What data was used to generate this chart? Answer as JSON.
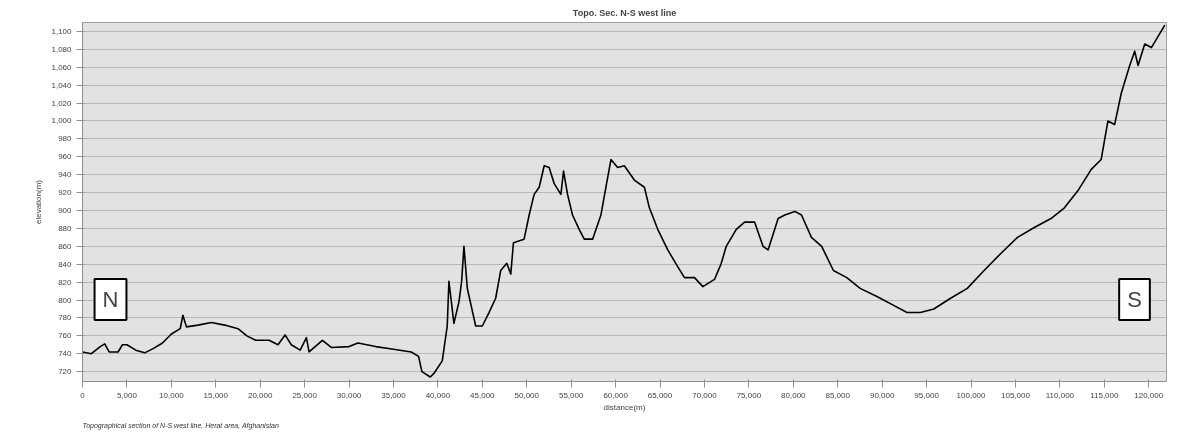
{
  "chart_data": {
    "type": "line",
    "title": "Topo. Sec. N-S west line",
    "xlabel": "distance(m)",
    "ylabel": "elevation(m)",
    "annotations": [
      "N",
      "S",
      "Topographical section of N-S west line, Herat area, Afghanistan"
    ],
    "x": [
      0,
      1000,
      2000,
      2500,
      3000,
      4000,
      4500,
      5000,
      6000,
      7000,
      8000,
      9000,
      10000,
      11000,
      11300,
      11700,
      13000,
      14500,
      16000,
      17500,
      18500,
      19500,
      21000,
      22000,
      22800,
      23500,
      24500,
      25200,
      25500,
      27000,
      28000,
      30000,
      31000,
      33000,
      35000,
      37000,
      37820,
      38200,
      39140,
      39550,
      40490,
      41050,
      41240,
      41800,
      42370,
      42670,
      42930,
      43310,
      44250,
      45000,
      45750,
      46500,
      47070,
      47750,
      48200,
      48500,
      49700,
      50270,
      50830,
      51400,
      51960,
      52520,
      53090,
      53840,
      54140,
      54590,
      55150,
      55900,
      56470,
      57410,
      58350,
      58910,
      59480,
      60230,
      60980,
      62110,
      63240,
      63800,
      64740,
      65870,
      67000,
      67750,
      68880,
      69820,
      71130,
      71890,
      72450,
      73580,
      74520,
      75650,
      76590,
      77160,
      78290,
      79040,
      80170,
      80920,
      82040,
      83190,
      84510,
      86020,
      87520,
      89410,
      91290,
      92800,
      94300,
      95810,
      97700,
      99580,
      101470,
      103350,
      105230,
      107120,
      109000,
      110510,
      112020,
      113530,
      114650,
      115410,
      116160,
      116910,
      117860,
      118420,
      118800,
      119550,
      120300,
      121810
    ],
    "series": [
      {
        "color": "#000000",
        "values": [
          742,
          740,
          748,
          751,
          742,
          742,
          750,
          750,
          744,
          741,
          746,
          752,
          762,
          768,
          783,
          770,
          772,
          775,
          772,
          768,
          760,
          755,
          755,
          750,
          761,
          750,
          744,
          758,
          742,
          755,
          747,
          748,
          752,
          748,
          745,
          742,
          737,
          720,
          714,
          718,
          732,
          771,
          821,
          774,
          798,
          821,
          860,
          813,
          771,
          771,
          786,
          802,
          833,
          841,
          829,
          864,
          868,
          895,
          918,
          926,
          950,
          948,
          930,
          918,
          944,
          918,
          895,
          879,
          868,
          868,
          895,
          926,
          957,
          948,
          950,
          934,
          926,
          903,
          879,
          856,
          837,
          825,
          825,
          815,
          823,
          841,
          860,
          879,
          887,
          887,
          860,
          856,
          891,
          895,
          899,
          895,
          870,
          860,
          833,
          825,
          813,
          804,
          794,
          786,
          786,
          790,
          802,
          813,
          833,
          852,
          870,
          881,
          891,
          903,
          922,
          946,
          957,
          1000,
          996,
          1031,
          1062,
          1078,
          1062,
          1086,
          1082,
          1107
        ]
      }
    ],
    "xlim": [
      0,
      122000
    ],
    "ylim": [
      709,
      1110
    ],
    "xticks": [
      {
        "value": 0,
        "label": "0"
      },
      {
        "value": 5000,
        "label": "5,000"
      },
      {
        "value": 10000,
        "label": "10,000"
      },
      {
        "value": 15000,
        "label": "15,000"
      },
      {
        "value": 20000,
        "label": "20,000"
      },
      {
        "value": 25000,
        "label": "25,000"
      },
      {
        "value": 30000,
        "label": "30,000"
      },
      {
        "value": 35000,
        "label": "35,000"
      },
      {
        "value": 40000,
        "label": "40,000"
      },
      {
        "value": 45000,
        "label": "45,000"
      },
      {
        "value": 50000,
        "label": "50,000"
      },
      {
        "value": 55000,
        "label": "55,000"
      },
      {
        "value": 60000,
        "label": "60,000"
      },
      {
        "value": 65000,
        "label": "65,000"
      },
      {
        "value": 70000,
        "label": "70,000"
      },
      {
        "value": 75000,
        "label": "75,000"
      },
      {
        "value": 80000,
        "label": "80,000"
      },
      {
        "value": 85000,
        "label": "85,000"
      },
      {
        "value": 90000,
        "label": "90,000"
      },
      {
        "value": 95000,
        "label": "95,000"
      },
      {
        "value": 100000,
        "label": "100,000"
      },
      {
        "value": 105000,
        "label": "105,000"
      },
      {
        "value": 110000,
        "label": "110,000"
      },
      {
        "value": 115000,
        "label": "115,000"
      },
      {
        "value": 120000,
        "label": "120,000"
      }
    ],
    "yticks": [
      720,
      740,
      760,
      780,
      800,
      820,
      840,
      860,
      880,
      900,
      920,
      940,
      960,
      980,
      {
        "value": 1000,
        "label": "1,000"
      },
      {
        "value": 1020,
        "label": "1,020"
      },
      {
        "value": 1040,
        "label": "1,040"
      },
      {
        "value": 1060,
        "label": "1,060"
      },
      {
        "value": 1080,
        "label": "1,080"
      },
      {
        "value": 1100,
        "label": "1,100"
      }
    ],
    "grid": "y",
    "marker": "none",
    "line_style": "solid"
  }
}
